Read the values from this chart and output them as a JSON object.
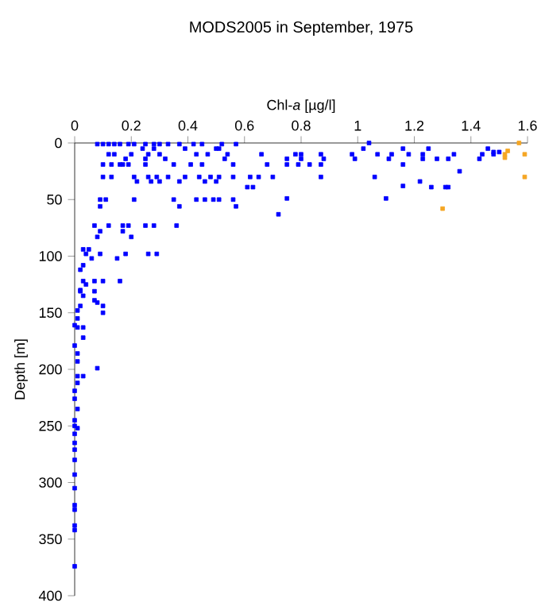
{
  "chart_data": {
    "type": "scatter",
    "title": "MODS2005 in September, 1975",
    "xlabel": "Chl-*a* [µg/l]",
    "ylabel": "Depth [m]",
    "xlim": [
      0,
      1.6
    ],
    "xticks": [
      0,
      0.2,
      0.4,
      0.6,
      0.8,
      1,
      1.2,
      1.4,
      1.6
    ],
    "ylim": [
      400,
      0
    ],
    "yticks": [
      0,
      50,
      100,
      150,
      200,
      250,
      300,
      350,
      400
    ],
    "marker": "square",
    "series": [
      {
        "color": "#0000ff",
        "x": [
          0.08,
          0.1,
          0.12,
          0.14,
          0.16,
          0.19,
          0.21,
          0.25,
          0.28,
          0.3,
          0.33,
          0.37,
          0.42,
          0.45,
          0.52,
          0.57,
          0.24,
          0.28,
          0.39,
          0.5,
          0.51,
          0.12,
          0.14,
          0.2,
          0.26,
          0.3,
          0.43,
          0.47,
          0.54,
          0.66,
          0.78,
          0.18,
          0.25,
          0.32,
          0.53,
          0.75,
          0.1,
          0.13,
          0.16,
          0.17,
          0.19,
          0.25,
          0.35,
          0.41,
          0.45,
          0.56,
          0.68,
          0.75,
          0.1,
          0.13,
          0.21,
          0.26,
          0.29,
          0.33,
          0.39,
          0.44,
          0.48,
          0.51,
          0.56,
          0.62,
          0.65,
          0.7,
          0.22,
          0.27,
          0.3,
          0.37,
          0.46,
          0.5,
          0.61,
          0.63,
          0.09,
          0.11,
          0.21,
          0.35,
          0.43,
          0.46,
          0.49,
          0.51,
          0.56,
          0.09,
          0.37,
          0.57,
          0.72,
          0.07,
          0.12,
          0.17,
          0.19,
          0.25,
          0.28,
          0.36,
          0.09,
          0.17,
          0.08,
          0.2,
          0.03,
          0.05,
          0.04,
          0.09,
          0.18,
          0.26,
          0.29,
          0.06,
          0.15,
          0.03,
          0.02,
          0.03,
          0.07,
          0.1,
          0.16,
          0.04,
          0.02,
          0.07,
          1.04,
          1.02,
          1.16,
          1.25,
          1.46,
          1.48,
          1.5,
          0.8,
          0.87,
          0.98,
          1.07,
          1.12,
          1.18,
          1.23,
          1.34,
          1.44,
          1.48,
          0.8,
          0.88,
          0.99,
          1.11,
          1.23,
          1.28,
          1.32,
          1.43,
          0.79,
          0.83,
          0.87,
          1.16,
          1.36,
          0.87,
          1.06,
          1.22,
          1.16,
          1.26,
          1.31,
          1.32,
          1.1,
          0.75,
          0.02,
          0.07,
          0.08,
          0.1,
          0.03,
          0.02,
          0.01,
          0.1,
          0,
          0.01,
          0.03,
          0.03,
          0.01,
          0,
          0.01,
          0.01,
          0.08,
          0.01,
          0.03,
          0.01,
          0,
          0,
          0.01,
          0,
          0,
          0.01,
          0,
          0,
          0,
          0,
          0,
          0,
          0,
          0,
          0,
          0,
          0
        ],
        "values": [
          1,
          1,
          1,
          1,
          1,
          1,
          1,
          1,
          1,
          1,
          1,
          1,
          1,
          1,
          1,
          1,
          5,
          5,
          5,
          5,
          5,
          10,
          10,
          10,
          10,
          10,
          10,
          10,
          10,
          10,
          10,
          14,
          14,
          14,
          14,
          14,
          19,
          19,
          19,
          19,
          19,
          19,
          19,
          19,
          19,
          19,
          19,
          19,
          30,
          30,
          30,
          30,
          30,
          30,
          30,
          30,
          30,
          30,
          30,
          30,
          30,
          30,
          34,
          34,
          34,
          34,
          34,
          34,
          39,
          39,
          50,
          50,
          50,
          50,
          50,
          50,
          50,
          50,
          50,
          56,
          56,
          56,
          63,
          73,
          73,
          73,
          73,
          73,
          73,
          73,
          78,
          78,
          83,
          83,
          94,
          94,
          98,
          98,
          98,
          98,
          98,
          102,
          102,
          108,
          112,
          122,
          122,
          122,
          122,
          125,
          131,
          131,
          0,
          5,
          5,
          5,
          5,
          8,
          8,
          10,
          10,
          10,
          10,
          10,
          10,
          10,
          10,
          10,
          10,
          14,
          14,
          14,
          14,
          14,
          14,
          14,
          14,
          19,
          19,
          19,
          19,
          25,
          30,
          30,
          34,
          38,
          39,
          39,
          39,
          49,
          49,
          130,
          139,
          141,
          144,
          135,
          144,
          148,
          150,
          161,
          163,
          163,
          172,
          155,
          179,
          186,
          193,
          199,
          206,
          206,
          212,
          219,
          226,
          235,
          245,
          250,
          252,
          257,
          265,
          271,
          280,
          293,
          305,
          320,
          324,
          338,
          342,
          374
        ]
      },
      {
        "color": "#f5a623",
        "x": [
          1.57,
          1.53,
          1.52,
          1.52,
          1.59,
          1.59,
          1.3
        ],
        "values": [
          0,
          7,
          10,
          13,
          10,
          30,
          58
        ]
      }
    ]
  }
}
